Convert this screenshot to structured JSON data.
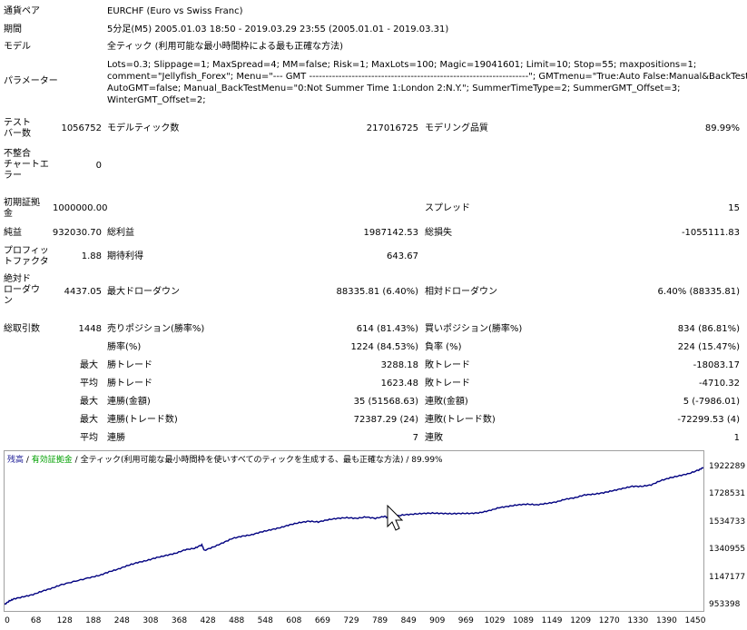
{
  "info": {
    "symbol_label": "通貨ペア",
    "symbol_value": "EURCHF (Euro vs Swiss Franc)",
    "period_label": "期間",
    "period_value": "5分足(M5) 2005.01.03 18:50 - 2019.03.29 23:55 (2005.01.01 - 2019.03.31)",
    "model_label": "モデル",
    "model_value": "全ティック (利用可能な最小時間枠による最も正確な方法)",
    "params_label": "パラメーター",
    "params_lines": [
      "Lots=0.3; Slippage=1; MaxSpread=4; MM=false; Risk=1; MaxLots=100; Magic=19041601; Limit=10; Stop=55; maxpositions=1;",
      "comment=\"Jellyfish_Forex\"; Menu=\"--- GMT -------------------------------------------------------------------\"; GMTmenu=\"True:Auto False:Manual&BackTest\";",
      "AutoGMT=false; Manual_BackTestMenu=\"0:Not Summer Time 1:London 2:N.Y.\"; SummerTimeType=2; SummerGMT_Offset=3;",
      "WinterGMT_Offset=2;"
    ]
  },
  "stats": {
    "bars_label": "テスト\nバー数",
    "bars_value": "1056752",
    "ticks_label": "モデルティック数",
    "ticks_value": "217016725",
    "quality_label": "モデリング品質",
    "quality_value": "89.99%",
    "mismatch_label": "不整合\nチャートエ\nラー",
    "mismatch_value": "0",
    "deposit_label": "初期証拠\n金",
    "deposit_value": "1000000.00",
    "spread_label": "スプレッド",
    "spread_value": "15",
    "netprofit_label": "純益",
    "netprofit_value": "932030.70",
    "grossprofit_label": "総利益",
    "grossprofit_value": "1987142.53",
    "grossloss_label": "総損失",
    "grossloss_value": "-1055111.83",
    "pf_label": "プロフィッ\nトファクタ",
    "pf_value": "1.88",
    "expected_label": "期待利得",
    "expected_value": "643.67",
    "absdd_label": "絶対ド\nローダウ\nン",
    "absdd_value": "4437.05",
    "maxdd_label": "最大ドローダウン",
    "maxdd_value": "88335.81 (6.40%)",
    "reldd_label": "相対ドローダウン",
    "reldd_value": "6.40% (88335.81)",
    "trades_label": "総取引数",
    "trades_value": "1448",
    "short_label": "売りポジション(勝率%)",
    "short_value": "614 (81.43%)",
    "long_label": "買いポジション(勝率%)",
    "long_value": "834 (86.81%)",
    "winpct_label": "勝率(%)",
    "winpct_value": "1224 (84.53%)",
    "losspct_label": "負率 (%)",
    "losspct_value": "224 (15.47%)",
    "max_label": "最大",
    "avg_label": "平均",
    "largest_win_label": "勝トレード",
    "largest_win_value": "3288.18",
    "largest_loss_label": "敗トレード",
    "largest_loss_value": "-18083.17",
    "avg_win_label": "勝トレード",
    "avg_win_value": "1623.48",
    "avg_loss_label": "敗トレード",
    "avg_loss_value": "-4710.32",
    "max_consec_wins_label": "連勝(金額)",
    "max_consec_wins_value": "35 (51568.63)",
    "max_consec_losses_label": "連敗(金額)",
    "max_consec_losses_value": "5 (-7986.01)",
    "max_consec_profit_label": "連勝(トレード数)",
    "max_consec_profit_value": "72387.29 (24)",
    "max_consec_loss_label": "連敗(トレード数)",
    "max_consec_loss_value": "-72299.53 (4)",
    "avg_consec_wins_label": "連勝",
    "avg_consec_wins_value": "7",
    "avg_consec_losses_label": "連敗",
    "avg_consec_losses_value": "1"
  },
  "chart_data": {
    "type": "line",
    "legend": {
      "balance": "残高",
      "sep1": " / ",
      "equity": "有効証拠金",
      "sep2": " / ",
      "model": "全ティック(利用可能な最小時間枠を使いすべてのティックを生成する、最も正確な方法)",
      "sep3": " / ",
      "quality": "89.99%"
    },
    "colors": {
      "balance": "#1c1c96",
      "equity": "#00a000",
      "line": "#000080"
    },
    "yticks": [
      "1922289",
      "1728531",
      "1534733",
      "1340955",
      "1147177",
      "953398"
    ],
    "xticks": [
      "0",
      "68",
      "128",
      "188",
      "248",
      "308",
      "368",
      "428",
      "488",
      "548",
      "608",
      "669",
      "729",
      "789",
      "849",
      "909",
      "969",
      "1029",
      "1089",
      "1149",
      "1209",
      "1270",
      "1330",
      "1390",
      "1450"
    ],
    "ylim": [
      953398,
      1922289
    ],
    "xlim": [
      0,
      1470
    ],
    "series": [
      {
        "x": [
          0,
          10,
          20,
          40,
          60,
          80,
          100,
          120,
          150,
          180,
          200,
          220,
          240,
          260,
          280,
          300,
          320,
          340,
          360,
          380,
          400,
          415,
          420,
          440,
          460,
          480,
          500,
          520,
          540,
          560,
          580,
          600,
          620,
          640,
          660,
          680,
          700,
          720,
          740,
          760,
          780,
          800,
          810,
          820,
          840,
          860,
          880,
          900,
          920,
          940,
          960,
          980,
          1000,
          1020,
          1040,
          1060,
          1080,
          1100,
          1120,
          1140,
          1160,
          1180,
          1200,
          1220,
          1240,
          1260,
          1280,
          1300,
          1320,
          1340,
          1360,
          1380,
          1400,
          1420,
          1440,
          1460,
          1470
        ],
        "y": [
          960000,
          985000,
          1000000,
          1015000,
          1030000,
          1055000,
          1075000,
          1100000,
          1125000,
          1150000,
          1165000,
          1190000,
          1210000,
          1235000,
          1255000,
          1270000,
          1290000,
          1305000,
          1320000,
          1345000,
          1355000,
          1380000,
          1340000,
          1365000,
          1395000,
          1425000,
          1440000,
          1450000,
          1470000,
          1485000,
          1500000,
          1520000,
          1535000,
          1545000,
          1540000,
          1555000,
          1565000,
          1570000,
          1565000,
          1575000,
          1565000,
          1580000,
          1560000,
          1580000,
          1590000,
          1595000,
          1600000,
          1602000,
          1600000,
          1598000,
          1600000,
          1600000,
          1605000,
          1620000,
          1640000,
          1650000,
          1660000,
          1665000,
          1660000,
          1670000,
          1680000,
          1700000,
          1710000,
          1730000,
          1735000,
          1745000,
          1760000,
          1775000,
          1790000,
          1790000,
          1800000,
          1830000,
          1850000,
          1865000,
          1880000,
          1905000,
          1922289
        ]
      }
    ]
  }
}
